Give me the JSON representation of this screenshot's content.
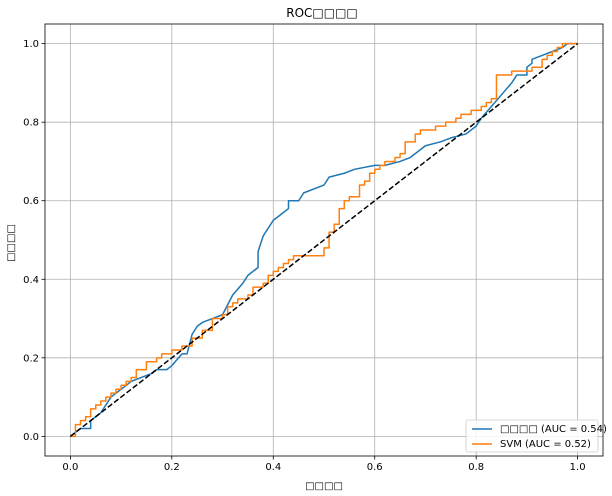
{
  "chart_data": {
    "type": "line",
    "title": "ROC□□□□",
    "xlabel": "□□□□",
    "ylabel": "□□□□",
    "xlim": [
      -0.05,
      1.05
    ],
    "ylim": [
      -0.05,
      1.05
    ],
    "xticks": [
      "0.0",
      "0.2",
      "0.4",
      "0.6",
      "0.8",
      "1.0"
    ],
    "yticks": [
      "0.0",
      "0.2",
      "0.4",
      "0.6",
      "0.8",
      "1.0"
    ],
    "grid": true,
    "legend_position": "lower-right",
    "series": [
      {
        "name": "□□□□ (AUC = 0.54)",
        "color": "#1f77b4",
        "x": [
          0.0,
          0.02,
          0.04,
          0.04,
          0.06,
          0.07,
          0.08,
          0.1,
          0.12,
          0.14,
          0.16,
          0.17,
          0.18,
          0.19,
          0.2,
          0.22,
          0.23,
          0.24,
          0.25,
          0.26,
          0.28,
          0.3,
          0.32,
          0.34,
          0.35,
          0.37,
          0.37,
          0.38,
          0.4,
          0.42,
          0.43,
          0.43,
          0.45,
          0.46,
          0.5,
          0.51,
          0.54,
          0.56,
          0.6,
          0.62,
          0.65,
          0.67,
          0.7,
          0.73,
          0.75,
          0.78,
          0.8,
          0.81,
          0.83,
          0.85,
          0.87,
          0.88,
          0.9,
          0.9,
          0.91,
          0.91,
          0.93,
          0.95,
          0.97,
          0.98,
          1.0
        ],
        "y": [
          0.0,
          0.02,
          0.02,
          0.04,
          0.06,
          0.08,
          0.1,
          0.12,
          0.14,
          0.15,
          0.16,
          0.17,
          0.17,
          0.17,
          0.18,
          0.21,
          0.21,
          0.26,
          0.28,
          0.29,
          0.3,
          0.31,
          0.36,
          0.39,
          0.41,
          0.43,
          0.47,
          0.51,
          0.55,
          0.57,
          0.58,
          0.6,
          0.6,
          0.62,
          0.64,
          0.66,
          0.67,
          0.68,
          0.69,
          0.69,
          0.7,
          0.71,
          0.74,
          0.75,
          0.76,
          0.77,
          0.79,
          0.81,
          0.84,
          0.87,
          0.9,
          0.92,
          0.92,
          0.94,
          0.95,
          0.96,
          0.97,
          0.98,
          0.99,
          1.0,
          1.0
        ]
      },
      {
        "name": "SVM (AUC = 0.52)",
        "color": "#ff7f0e",
        "step": true,
        "x": [
          0.0,
          0.01,
          0.02,
          0.03,
          0.04,
          0.05,
          0.06,
          0.07,
          0.08,
          0.09,
          0.1,
          0.11,
          0.12,
          0.13,
          0.15,
          0.17,
          0.18,
          0.2,
          0.22,
          0.24,
          0.26,
          0.28,
          0.3,
          0.31,
          0.32,
          0.33,
          0.35,
          0.36,
          0.38,
          0.39,
          0.4,
          0.41,
          0.42,
          0.43,
          0.44,
          0.46,
          0.5,
          0.51,
          0.52,
          0.53,
          0.54,
          0.55,
          0.57,
          0.58,
          0.59,
          0.6,
          0.61,
          0.62,
          0.64,
          0.65,
          0.66,
          0.68,
          0.69,
          0.7,
          0.72,
          0.74,
          0.76,
          0.77,
          0.79,
          0.81,
          0.82,
          0.83,
          0.84,
          0.85,
          0.87,
          0.9,
          0.91,
          0.93,
          0.94,
          0.95,
          0.96,
          0.97,
          0.98,
          1.0
        ],
        "y": [
          0.0,
          0.03,
          0.04,
          0.05,
          0.07,
          0.08,
          0.09,
          0.1,
          0.11,
          0.12,
          0.13,
          0.14,
          0.15,
          0.17,
          0.19,
          0.2,
          0.21,
          0.22,
          0.23,
          0.25,
          0.27,
          0.3,
          0.31,
          0.33,
          0.34,
          0.35,
          0.36,
          0.38,
          0.39,
          0.41,
          0.42,
          0.43,
          0.44,
          0.45,
          0.46,
          0.46,
          0.48,
          0.52,
          0.54,
          0.58,
          0.6,
          0.61,
          0.64,
          0.65,
          0.67,
          0.68,
          0.69,
          0.7,
          0.71,
          0.72,
          0.75,
          0.77,
          0.78,
          0.78,
          0.79,
          0.8,
          0.81,
          0.82,
          0.83,
          0.84,
          0.85,
          0.86,
          0.92,
          0.92,
          0.93,
          0.93,
          0.94,
          0.96,
          0.97,
          0.98,
          0.99,
          1.0,
          1.0,
          1.0
        ]
      },
      {
        "name": "",
        "color": "#000000",
        "dashed": true,
        "x": [
          0.0,
          1.0
        ],
        "y": [
          0.0,
          1.0
        ]
      }
    ]
  }
}
